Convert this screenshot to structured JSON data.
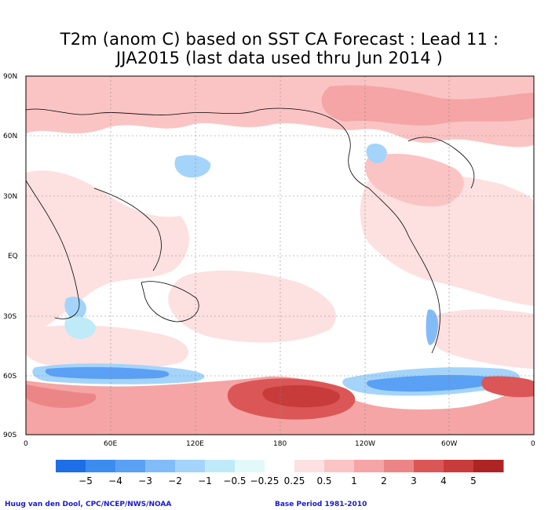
{
  "title": {
    "line1": "T2m (anom C) based on SST CA Forecast : Lead 11 :",
    "line2": "JJA2015 (last data used thru Jun 2014 )"
  },
  "lat_labels": [
    "90N",
    "60N",
    "30N",
    "EQ",
    "30S",
    "60S",
    "90S"
  ],
  "lon_labels": [
    "0",
    "60E",
    "120E",
    "180",
    "120W",
    "60W",
    "0"
  ],
  "colorbar": {
    "labels": [
      "−5",
      "−4",
      "−3",
      "−2",
      "−1",
      "−0.5",
      "−0.25",
      "0.25",
      "0.5",
      "1",
      "2",
      "3",
      "4",
      "5"
    ],
    "colors": [
      "#1e6ee6",
      "#3c8cf0",
      "#5aa0f5",
      "#82bcf8",
      "#a4d4fa",
      "#bfeaf8",
      "#e2f9f9",
      "#ffffff",
      "#fde0e0",
      "#fbc4c4",
      "#f5a5a5",
      "#ec8686",
      "#db5757",
      "#c83b3b",
      "#ad2424"
    ]
  },
  "footer": {
    "credit": "Huug van den Dool, CPC/NCEP/NWS/NOAA",
    "base_period": "Base Period 1981-2010"
  }
}
